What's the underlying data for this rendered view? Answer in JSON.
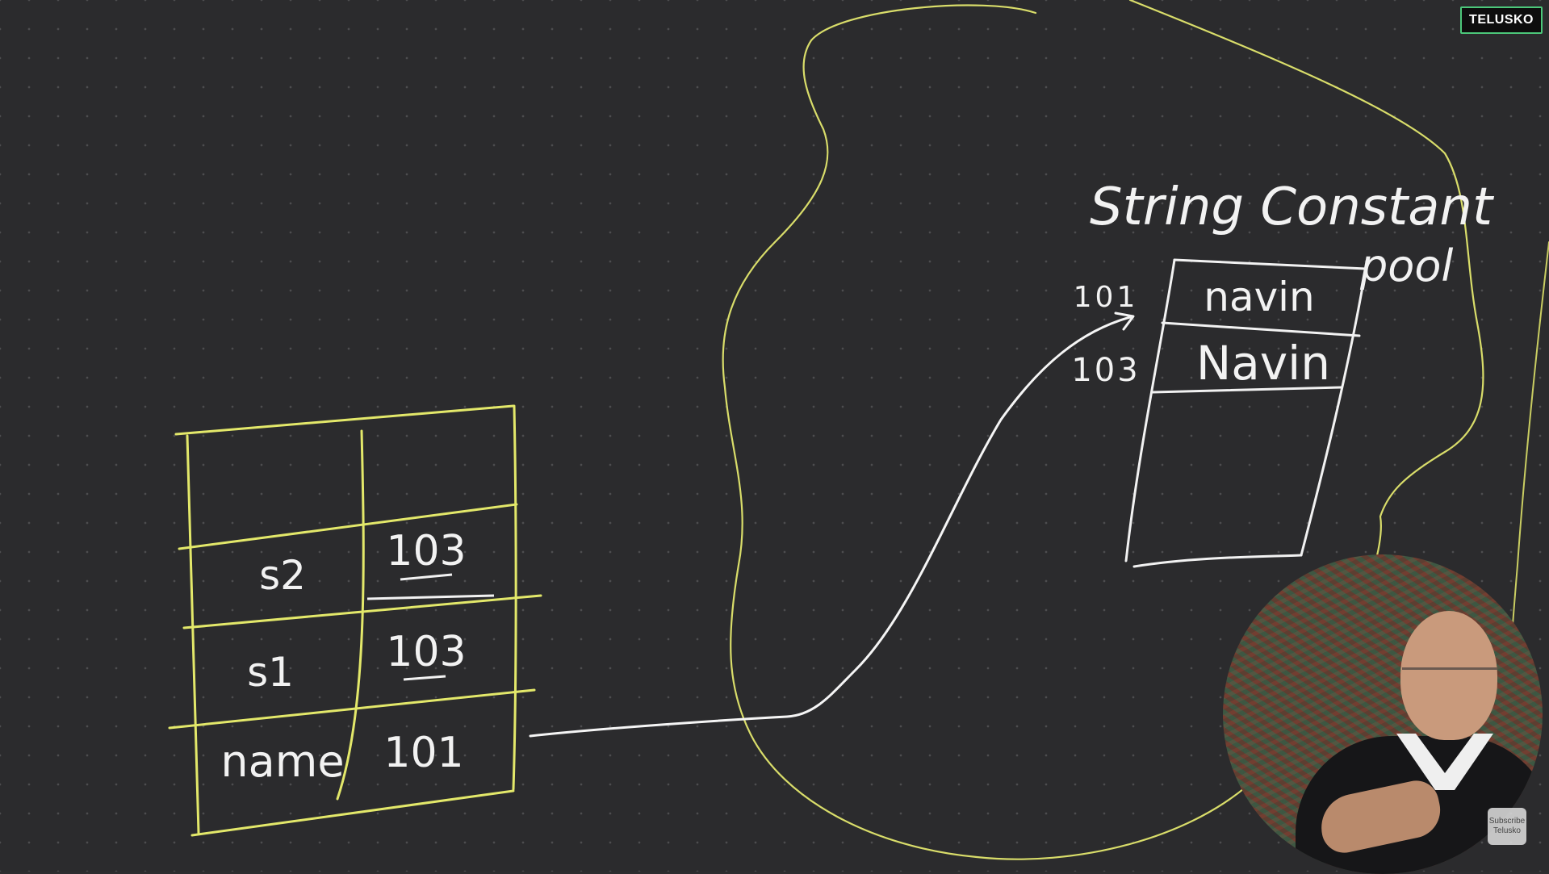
{
  "logo": {
    "text": "TELUSKO"
  },
  "subscribe": {
    "line1": "Subscribe",
    "line2": "Telusko"
  },
  "colors": {
    "background": "#2b2b2d",
    "yellow_ink": "#e3e86a",
    "white_ink": "#f2f2f2",
    "logo_border": "#4cc77a"
  },
  "stack": {
    "rows": [
      {
        "name": "s2",
        "value": "103"
      },
      {
        "name": "s1",
        "value": "103"
      },
      {
        "name": "name",
        "value": "101"
      }
    ]
  },
  "pool": {
    "title_line1": "String Constant",
    "title_line2": "pool",
    "entries": [
      {
        "address": "101",
        "value": "navin"
      },
      {
        "address": "103",
        "value": "Navin"
      }
    ]
  }
}
